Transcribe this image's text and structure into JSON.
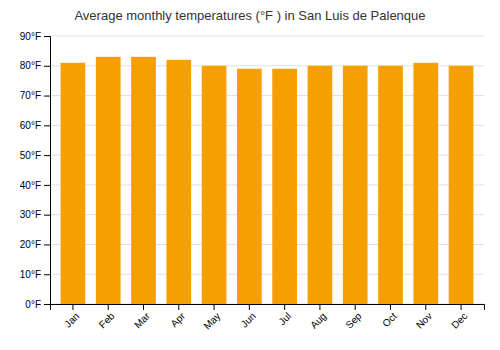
{
  "chart_data": {
    "type": "bar",
    "title": "Average monthly temperatures (°F ) in San Luis de Palenque",
    "categories": [
      "Jan",
      "Feb",
      "Mar",
      "Apr",
      "May",
      "Jun",
      "Jul",
      "Aug",
      "Sep",
      "Oct",
      "Nov",
      "Dec"
    ],
    "values": [
      81,
      83,
      83,
      82,
      80,
      79,
      79,
      80,
      80,
      80,
      81,
      80
    ],
    "color": "#F5A000",
    "ylim": [
      0,
      90
    ],
    "yticks": [
      {
        "value": 0,
        "label": "0°F"
      },
      {
        "value": 10,
        "label": "10°F"
      },
      {
        "value": 20,
        "label": "20°F"
      },
      {
        "value": 30,
        "label": "30°F"
      },
      {
        "value": 40,
        "label": "40°F"
      },
      {
        "value": 50,
        "label": "50°F"
      },
      {
        "value": 60,
        "label": "60°F"
      },
      {
        "value": 70,
        "label": "70°F"
      },
      {
        "value": 80,
        "label": "80°F"
      },
      {
        "value": 90,
        "label": "90°F"
      }
    ],
    "grid": true
  }
}
